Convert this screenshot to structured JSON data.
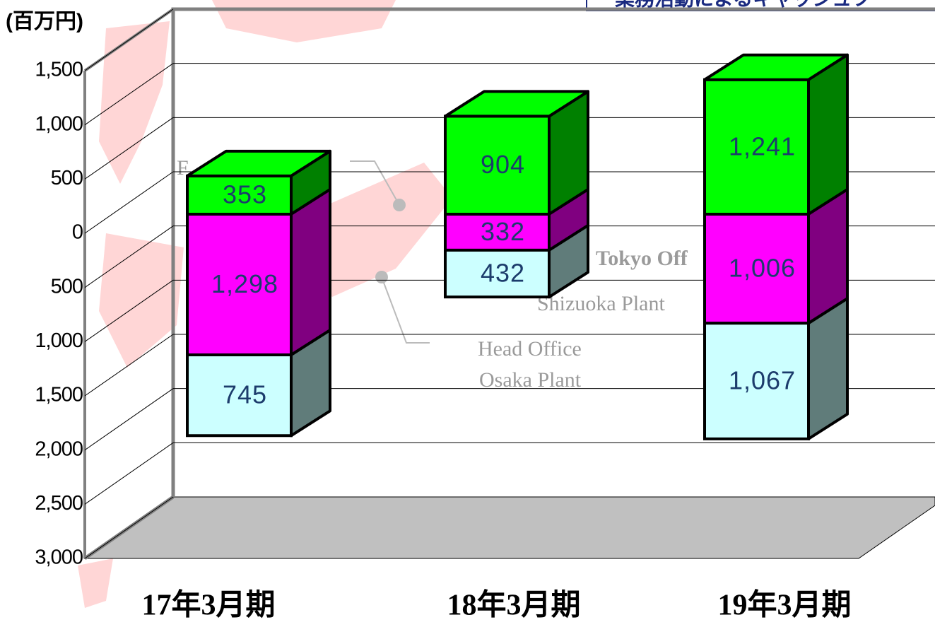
{
  "chart_data": {
    "type": "stacked_bar_3d",
    "title": "業務活動によるキャッシュフ",
    "y_axis_label": "(百万円)",
    "categories": [
      "17年3月期",
      "18年3月期",
      "19年3月期"
    ],
    "series": [
      {
        "color": "#00ff00",
        "side_color": "#008000",
        "values": [
          353,
          904,
          1241
        ],
        "value_labels": [
          "353",
          "904",
          "1,241"
        ]
      },
      {
        "color": "#ff00ff",
        "side_color": "#800080",
        "values": [
          -1298,
          -332,
          -1006
        ],
        "value_labels": [
          "1,298",
          "332",
          "1,006"
        ]
      },
      {
        "color": "#ccffff",
        "side_color": "#607c7a",
        "values": [
          -745,
          -432,
          -1067
        ],
        "value_labels": [
          "745",
          "432",
          "1,067"
        ]
      }
    ],
    "ylim": [
      -3000,
      1500
    ],
    "yticks": [
      {
        "value": 1500,
        "label": "1,500"
      },
      {
        "value": 1000,
        "label": "1,000"
      },
      500,
      0,
      {
        "value": -500,
        "label": "500"
      },
      {
        "value": -1000,
        "label": "1,000"
      },
      {
        "value": -1500,
        "label": "1,500"
      },
      {
        "value": -2000,
        "label": "2,000"
      },
      {
        "value": -2500,
        "label": "2,500"
      },
      {
        "value": -3000,
        "label": "3,000"
      }
    ],
    "grid": true,
    "annotations": [
      "Tokyo Off",
      "Shizuoka Plant",
      "Head Office",
      "Osaka Plant",
      "F"
    ]
  }
}
